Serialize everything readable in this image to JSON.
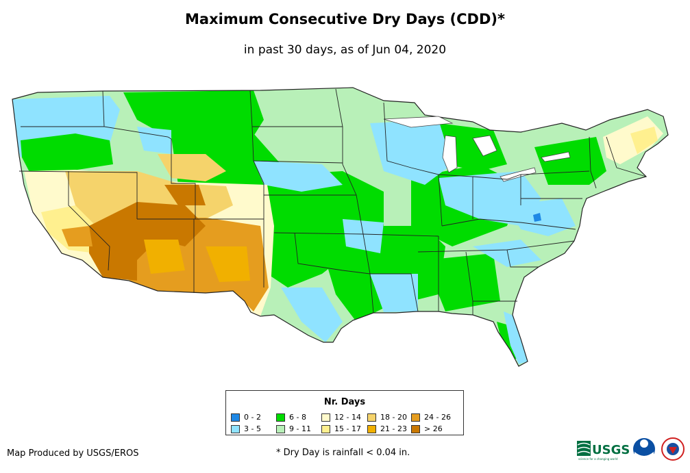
{
  "title": "Maximum Consecutive Dry Days (CDD)*",
  "subtitle": "in past 30 days, as of Jun 04, 2020",
  "legend": {
    "title": "Nr. Days",
    "items": [
      {
        "label": "0 - 2",
        "color": "#1e88e5"
      },
      {
        "label": "3 - 5",
        "color": "#8fe3ff"
      },
      {
        "label": "6 - 8",
        "color": "#00dc00"
      },
      {
        "label": "9 - 11",
        "color": "#b8f0b8"
      },
      {
        "label": "12 - 14",
        "color": "#fffacc"
      },
      {
        "label": "15 - 17",
        "color": "#fff08f"
      },
      {
        "label": "18 - 20",
        "color": "#f5d36b"
      },
      {
        "label": "21 - 23",
        "color": "#f1b000"
      },
      {
        "label": "24 - 26",
        "color": "#e59d1f"
      },
      {
        "label": "> 26",
        "color": "#c97800"
      }
    ]
  },
  "credit": "Map Produced by USGS/EROS",
  "footnote": "* Dry Day is rainfall < 0.04 in.",
  "logos": {
    "usgs": "USGS",
    "usgs_tagline": "science for a changing world"
  }
}
